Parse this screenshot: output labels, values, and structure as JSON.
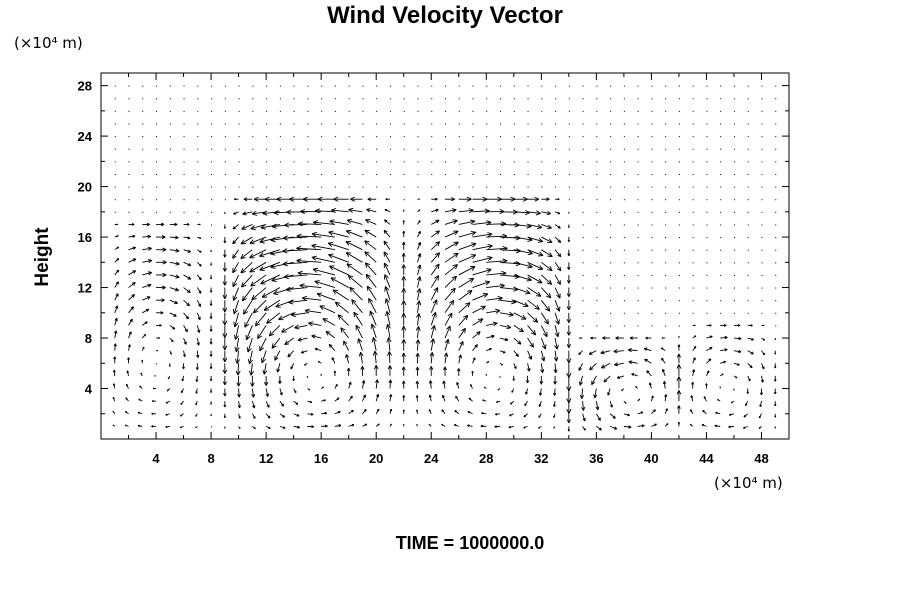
{
  "chart_data": {
    "type": "vector-field",
    "title": "Wind Velocity Vector",
    "x_unit_label": "(×10⁴ m)",
    "y_unit_label": "(×10⁴ m)",
    "ylabel": "Height",
    "xlabel": "",
    "xlim": [
      0,
      50
    ],
    "ylim": [
      0,
      29
    ],
    "x_ticks": [
      4,
      8,
      12,
      16,
      20,
      24,
      28,
      32,
      36,
      40,
      44,
      48
    ],
    "y_ticks": [
      4,
      8,
      12,
      16,
      20,
      24,
      28
    ],
    "x_tick_labels": [
      "4",
      "8",
      "12",
      "16",
      "20",
      "24",
      "28",
      "32",
      "36",
      "40",
      "44",
      "48"
    ],
    "y_tick_labels": [
      "4",
      "8",
      "12",
      "16",
      "20",
      "24",
      "28"
    ],
    "grid": false,
    "layer_top": 19,
    "cells": [
      {
        "name": "cell-1",
        "center_x": 15.5,
        "center_y": 5,
        "x_range": [
          9,
          22
        ],
        "y_range": [
          0,
          19
        ],
        "rotation": "counterclockwise",
        "strength": 1.0
      },
      {
        "name": "cell-2",
        "center_x": 28.5,
        "center_y": 5,
        "x_range": [
          22.5,
          34
        ],
        "y_range": [
          0,
          19
        ],
        "rotation": "clockwise",
        "strength": 0.85
      },
      {
        "name": "cell-3",
        "center_x": 38.5,
        "center_y": 3.5,
        "x_range": [
          34,
          42
        ],
        "y_range": [
          0,
          8
        ],
        "rotation": "counterclockwise",
        "strength": 0.6
      },
      {
        "name": "cell-4",
        "center_x": 45.5,
        "center_y": 4,
        "x_range": [
          42,
          49
        ],
        "y_range": [
          0,
          9
        ],
        "rotation": "clockwise",
        "strength": 0.45
      },
      {
        "name": "cell-5",
        "center_x": 4,
        "center_y": 6,
        "x_range": [
          0,
          8
        ],
        "y_range": [
          0,
          17
        ],
        "rotation": "clockwise",
        "strength": 0.5
      }
    ],
    "footer": "TIME = 1000000.0"
  }
}
